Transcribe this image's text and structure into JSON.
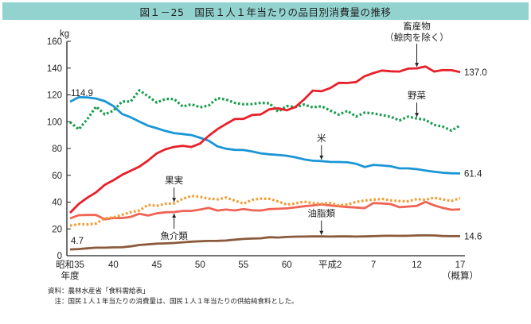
{
  "title": "図１－25　国民１人１年当たりの品目別消費量の推移",
  "notes": {
    "source": "資料：農林水産省「食料需給表」",
    "note": "　注：国民１人１年当たりの消費量は、国民１人１年当たりの供給純食料とした。"
  },
  "chart_data": {
    "type": "line",
    "title": "図１－25　国民１人１年当たりの品目別消費量の推移",
    "ylabel": "kg",
    "xlabel": "年度",
    "ylim": [
      0,
      160
    ],
    "yticks": [
      0,
      20,
      40,
      60,
      80,
      100,
      120,
      140,
      160
    ],
    "xlim": [
      1960,
      2005
    ],
    "xticks": [
      {
        "x": 1960,
        "label": "昭和35",
        "sub": "年度"
      },
      {
        "x": 1965,
        "label": "40",
        "sub": ""
      },
      {
        "x": 1970,
        "label": "45",
        "sub": ""
      },
      {
        "x": 1975,
        "label": "50",
        "sub": ""
      },
      {
        "x": 1980,
        "label": "55",
        "sub": ""
      },
      {
        "x": 1985,
        "label": "60",
        "sub": ""
      },
      {
        "x": 1990,
        "label": "平成2",
        "sub": ""
      },
      {
        "x": 1995,
        "label": "7",
        "sub": ""
      },
      {
        "x": 2000,
        "label": "12",
        "sub": ""
      },
      {
        "x": 2005,
        "label": "17",
        "sub": "（概算）"
      }
    ],
    "grid": false,
    "x": [
      1960,
      1961,
      1962,
      1963,
      1964,
      1965,
      1966,
      1967,
      1968,
      1969,
      1970,
      1971,
      1972,
      1973,
      1974,
      1975,
      1976,
      1977,
      1978,
      1979,
      1980,
      1981,
      1982,
      1983,
      1984,
      1985,
      1986,
      1987,
      1988,
      1989,
      1990,
      1991,
      1992,
      1993,
      1994,
      1995,
      1996,
      1997,
      1998,
      1999,
      2000,
      2001,
      2002,
      2003,
      2004,
      2005
    ],
    "series": [
      {
        "name": "米",
        "color": "#1a96d6",
        "style": "solid",
        "start_label": "114.9",
        "end_label": "61.4",
        "values": [
          114.9,
          118.3,
          118.1,
          117.3,
          115.3,
          111.7,
          105.8,
          103.3,
          100.1,
          97.0,
          95.1,
          93.1,
          91.5,
          90.8,
          90.0,
          88.0,
          85.8,
          81.6,
          79.8,
          79.0,
          78.9,
          77.8,
          76.4,
          75.7,
          75.2,
          74.6,
          73.4,
          71.9,
          70.9,
          70.6,
          70.0,
          69.9,
          69.7,
          68.6,
          66.2,
          67.8,
          67.3,
          66.7,
          65.2,
          65.2,
          64.6,
          63.6,
          62.7,
          61.9,
          61.5,
          61.4
        ]
      },
      {
        "name": "野菜",
        "color": "#159b4a",
        "style": "dotted",
        "annotation": "野菜",
        "values": [
          99.7,
          94.3,
          102.0,
          111.3,
          105.5,
          108.2,
          115.0,
          115.1,
          123.4,
          119.0,
          114.3,
          117.0,
          116.9,
          111.3,
          113.0,
          110.7,
          112.1,
          117.6,
          116.5,
          114.0,
          113.0,
          113.2,
          114.1,
          113.8,
          107.5,
          111.7,
          110.9,
          112.8,
          110.7,
          111.5,
          108.4,
          105.3,
          108.1,
          103.9,
          106.8,
          106.2,
          104.9,
          103.7,
          101.0,
          103.8,
          102.4,
          101.4,
          97.6,
          96.3,
          93.4,
          97.2
        ]
      },
      {
        "name": "畜産物（鯨肉を除く）",
        "color": "#e8202a",
        "style": "solid",
        "end_label": "137.0",
        "values": [
          32.0,
          38.6,
          43.3,
          47.3,
          52.9,
          56.3,
          60.3,
          63.4,
          66.5,
          71.0,
          76.4,
          79.4,
          81.2,
          82.0,
          81.1,
          83.7,
          89.5,
          94.4,
          98.3,
          102.0,
          102.1,
          105.0,
          105.4,
          109.3,
          110.0,
          108.5,
          111.0,
          116.6,
          123.2,
          122.7,
          125.1,
          129.0,
          128.9,
          129.6,
          134.0,
          136.3,
          138.2,
          137.6,
          137.4,
          139.6,
          139.8,
          141.2,
          137.4,
          138.5,
          138.4,
          137.0
        ]
      },
      {
        "name": "果実",
        "color": "#f39a2c",
        "style": "dotted",
        "annotation": "果実",
        "values": [
          22.4,
          23.5,
          23.4,
          24.0,
          28.0,
          28.5,
          30.5,
          32.5,
          33.8,
          37.9,
          37.2,
          38.8,
          39.0,
          42.5,
          44.6,
          43.9,
          42.6,
          42.1,
          43.4,
          41.1,
          38.8,
          41.7,
          42.6,
          42.4,
          40.5,
          38.2,
          39.0,
          40.3,
          39.3,
          38.8,
          39.4,
          37.5,
          38.2,
          40.1,
          41.2,
          41.9,
          42.3,
          41.3,
          40.8,
          40.6,
          42.3,
          41.7,
          43.3,
          42.0,
          40.9,
          43.0
        ]
      },
      {
        "name": "魚介類",
        "color": "#ef6455",
        "style": "solid",
        "annotation": "魚介類",
        "values": [
          27.8,
          30.2,
          30.4,
          30.4,
          27.2,
          28.1,
          28.1,
          29.0,
          31.3,
          30.0,
          31.6,
          32.4,
          32.6,
          33.4,
          33.4,
          34.4,
          35.7,
          33.7,
          34.4,
          33.8,
          34.8,
          33.9,
          33.7,
          34.8,
          35.0,
          35.3,
          36.1,
          36.9,
          37.5,
          38.3,
          37.5,
          36.9,
          36.3,
          36.0,
          35.5,
          39.3,
          39.0,
          38.5,
          36.2,
          36.7,
          37.2,
          40.2,
          37.6,
          35.7,
          34.3,
          34.6
        ]
      },
      {
        "name": "油脂類",
        "color": "#8b5a3c",
        "style": "solid",
        "annotation": "油脂類",
        "start_label": "4.7",
        "end_label": "14.6",
        "values": [
          4.7,
          5.0,
          5.5,
          6.0,
          6.0,
          6.2,
          6.3,
          7.0,
          8.0,
          8.5,
          9.0,
          9.2,
          9.5,
          10.0,
          10.5,
          10.8,
          11.0,
          11.1,
          11.3,
          12.0,
          12.5,
          12.8,
          13.0,
          13.8,
          13.6,
          14.0,
          14.2,
          14.3,
          14.4,
          14.4,
          14.3,
          14.4,
          14.4,
          14.3,
          14.4,
          14.6,
          14.8,
          14.9,
          14.8,
          14.9,
          15.1,
          15.2,
          15.1,
          14.7,
          14.6,
          14.6
        ]
      }
    ],
    "annotations": [
      {
        "text": "畜産物",
        "text2": "（鯨肉を除く）",
        "series": "畜産物（鯨肉を除く）",
        "x": 2000
      },
      {
        "text": "野菜",
        "series": "野菜",
        "x": 2000
      },
      {
        "text": "米",
        "series": "米",
        "x": 1989
      },
      {
        "text": "果実",
        "series": "果実",
        "x": 1972
      },
      {
        "text": "魚介類",
        "series": "魚介類",
        "x": 1972
      },
      {
        "text": "油脂類",
        "series": "油脂類",
        "x": 1989
      }
    ]
  }
}
